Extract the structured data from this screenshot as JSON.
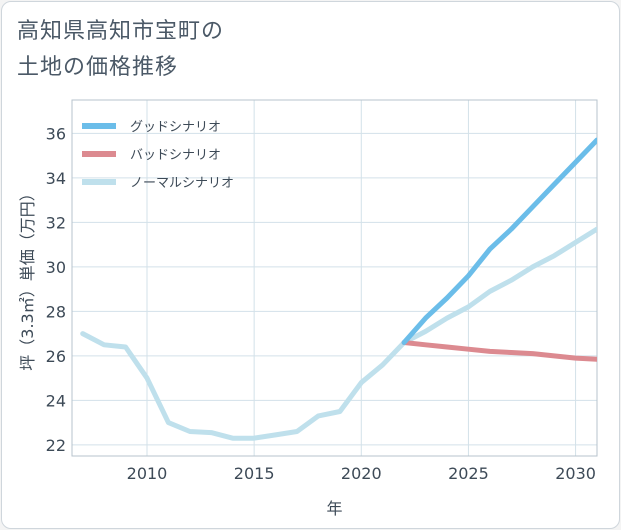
{
  "chart_data": {
    "type": "line",
    "title": "高知県高知市宝町の\n土地の価格推移",
    "xlabel": "年",
    "ylabel": "坪（3.3㎡）単価（万円）",
    "xlim": [
      2006.5,
      2031
    ],
    "ylim": [
      21.5,
      37.5
    ],
    "xticks": [
      2010,
      2015,
      2020,
      2025,
      2030
    ],
    "yticks": [
      22,
      24,
      26,
      28,
      30,
      32,
      34,
      36
    ],
    "grid": true,
    "legend_position": "top-left",
    "series": [
      {
        "name": "グッドシナリオ",
        "color": "#6bbde9",
        "x": [
          2022,
          2023,
          2024,
          2025,
          2026,
          2027,
          2028,
          2029,
          2030,
          2031
        ],
        "y": [
          26.6,
          27.7,
          28.6,
          29.6,
          30.8,
          31.7,
          32.7,
          33.7,
          34.7,
          35.7
        ]
      },
      {
        "name": "バッドシナリオ",
        "color": "#dc8a90",
        "x": [
          2022,
          2023,
          2024,
          2025,
          2026,
          2027,
          2028,
          2029,
          2030,
          2031
        ],
        "y": [
          26.6,
          26.5,
          26.4,
          26.3,
          26.2,
          26.15,
          26.1,
          26.0,
          25.9,
          25.85
        ]
      },
      {
        "name": "ノーマルシナリオ",
        "color": "#bfe0ec",
        "x": [
          2007,
          2008,
          2009,
          2010,
          2011,
          2012,
          2013,
          2014,
          2015,
          2016,
          2017,
          2018,
          2019,
          2020,
          2021,
          2022,
          2023,
          2024,
          2025,
          2026,
          2027,
          2028,
          2029,
          2030,
          2031
        ],
        "y": [
          27.0,
          26.5,
          26.4,
          25.0,
          23.0,
          22.6,
          22.55,
          22.3,
          22.3,
          22.45,
          22.6,
          23.3,
          23.5,
          24.8,
          25.6,
          26.6,
          27.1,
          27.7,
          28.2,
          28.9,
          29.4,
          30.0,
          30.5,
          31.1,
          31.7
        ]
      }
    ]
  }
}
